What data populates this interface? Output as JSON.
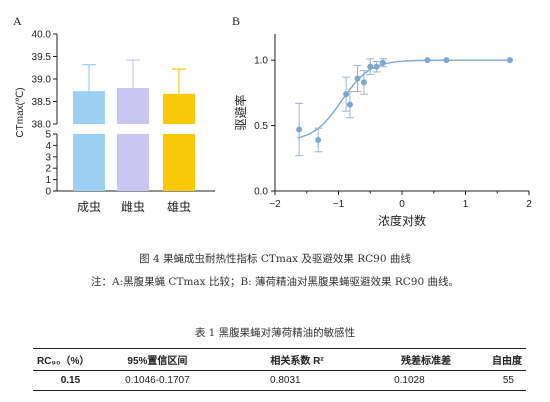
{
  "figure": {
    "panel_a_label": "A",
    "panel_b_label": "B",
    "caption": "图 4 果蝇成虫耐热性指标  CTmax 及驱避效果  RC90  曲线",
    "note": "注：A:黑腹果蝇  CTmax  比较；B:  薄荷精油对黑腹果蝇驱避效果  RC90  曲线。"
  },
  "chart_data": [
    {
      "type": "bar",
      "categories": [
        "成虫",
        "雌虫",
        "雄虫"
      ],
      "values": [
        38.73,
        38.8,
        38.67
      ],
      "error_upper": [
        39.32,
        39.42,
        39.22
      ],
      "colors": [
        "#9dcff3",
        "#c9c7f2",
        "#f7c90a"
      ],
      "ylabel": "CTmax(℃)",
      "ylim_lower": [
        0,
        5
      ],
      "ylim_upper": [
        38.0,
        40.0
      ],
      "yticks_lower": [
        "0",
        "1",
        "2",
        "3",
        "4",
        "5"
      ],
      "yticks_upper": [
        "38.0",
        "38.5",
        "39.0",
        "39.5",
        "40.0"
      ],
      "axis_break": true
    },
    {
      "type": "scatter",
      "xlabel": "浓度对数",
      "ylabel": "驱避率",
      "xlim": [
        -2,
        2
      ],
      "ylim": [
        0,
        1.2
      ],
      "xticks": [
        "−2",
        "−1",
        "0",
        "1",
        "2"
      ],
      "yticks": [
        "0.0",
        "0.5",
        "1.0"
      ],
      "point_color": "#7ea7cf",
      "points": [
        {
          "x": -1.62,
          "y": 0.47,
          "err": 0.2
        },
        {
          "x": -1.32,
          "y": 0.39,
          "err": 0.09
        },
        {
          "x": -0.88,
          "y": 0.74,
          "err": 0.13
        },
        {
          "x": -0.82,
          "y": 0.66,
          "err": 0.1
        },
        {
          "x": -0.7,
          "y": 0.86,
          "err": 0.1
        },
        {
          "x": -0.6,
          "y": 0.83,
          "err": 0.09
        },
        {
          "x": -0.5,
          "y": 0.95,
          "err": 0.06
        },
        {
          "x": -0.4,
          "y": 0.95,
          "err": 0.04
        },
        {
          "x": -0.3,
          "y": 0.98,
          "err": 0.03
        },
        {
          "x": 0.4,
          "y": 1.0,
          "err": 0
        },
        {
          "x": 0.7,
          "y": 1.0,
          "err": 0
        },
        {
          "x": 1.7,
          "y": 1.0,
          "err": 0
        }
      ],
      "fit_curve": {
        "model": "logistic",
        "bottom": 0.38,
        "top": 1.0,
        "x50": -0.95,
        "slope": 4.5
      }
    }
  ],
  "table": {
    "caption": "表  1  黑腹果蝇对薄荷精油的敏感性",
    "headers": [
      "RC₉₀（%）",
      "95%置信区间",
      "相关系数 R²",
      "残差标准差",
      "自由度"
    ],
    "rows": [
      [
        "0.15",
        "0.1046-0.1707",
        "0.8031",
        "0.1028",
        "55"
      ]
    ]
  }
}
